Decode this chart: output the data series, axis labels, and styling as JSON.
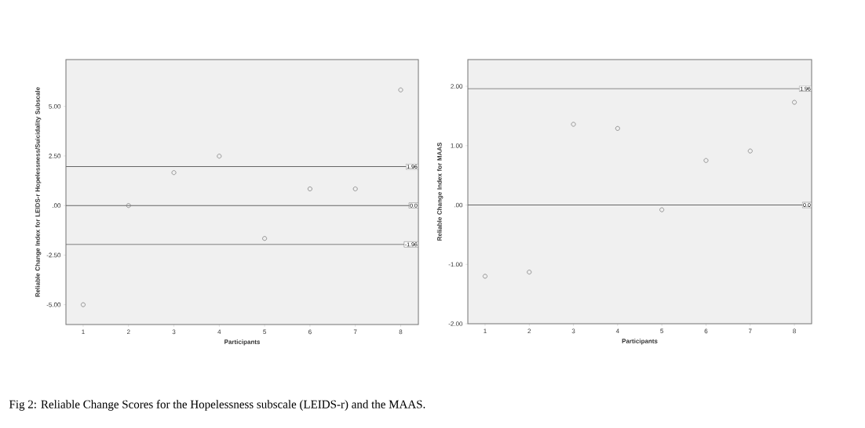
{
  "chart_data": [
    {
      "type": "scatter",
      "xlabel": "Participants",
      "ylabel": "Reliable Change Index for LEIDS-r Hopelessness/Suicidality Subscale",
      "x": [
        1,
        2,
        3,
        4,
        5,
        6,
        7,
        8
      ],
      "values": [
        -5.0,
        0.0,
        1.66,
        2.49,
        -1.66,
        0.84,
        0.84,
        5.83
      ],
      "color": "#808080",
      "marker": "circle",
      "xlim": [
        0.62,
        8.39
      ],
      "ylim": [
        -6.0,
        7.36
      ],
      "xticks": [
        1,
        2,
        3,
        4,
        5,
        6,
        7,
        8
      ],
      "yticks": [
        {
          "value": -5,
          "label": "-5.00"
        },
        {
          "value": -2.5,
          "label": "-2.50"
        },
        {
          "value": 0,
          "label": ".00"
        },
        {
          "value": 2.5,
          "label": "2.50"
        },
        {
          "value": 5,
          "label": "5.00"
        }
      ],
      "grid": false,
      "ref_lines": [
        {
          "axis": "y",
          "value": 1.96,
          "label": "1.96"
        },
        {
          "axis": "y",
          "value": 0,
          "label": "0.0"
        },
        {
          "axis": "y",
          "value": -1.96,
          "label": "-1.96"
        }
      ],
      "annotations": [
        "Fig 2: Reliable Change Scores for the Hopelessness subscale (LEIDS-r) and the MAAS."
      ]
    },
    {
      "type": "scatter",
      "xlabel": "Participants",
      "ylabel": "Reliable Change Index for MAAS",
      "x": [
        1,
        2,
        3,
        4,
        5,
        6,
        7,
        8
      ],
      "values": [
        -1.2,
        -1.13,
        1.36,
        1.29,
        -0.08,
        0.75,
        0.91,
        1.73
      ],
      "color": "#808080",
      "marker": "circle",
      "xlim": [
        0.61,
        8.39
      ],
      "ylim": [
        -2.0,
        2.45
      ],
      "xticks": [
        1,
        2,
        3,
        4,
        5,
        6,
        7,
        8
      ],
      "yticks": [
        {
          "value": -2,
          "label": "-2.00"
        },
        {
          "value": -1,
          "label": "-1.00"
        },
        {
          "value": 0,
          "label": ".00"
        },
        {
          "value": 1,
          "label": "1.00"
        },
        {
          "value": 2,
          "label": "2.00"
        }
      ],
      "grid": false,
      "ref_lines": [
        {
          "axis": "y",
          "value": 1.96,
          "label": "1.96"
        },
        {
          "axis": "y",
          "value": 0,
          "label": "0.0"
        }
      ]
    }
  ]
}
